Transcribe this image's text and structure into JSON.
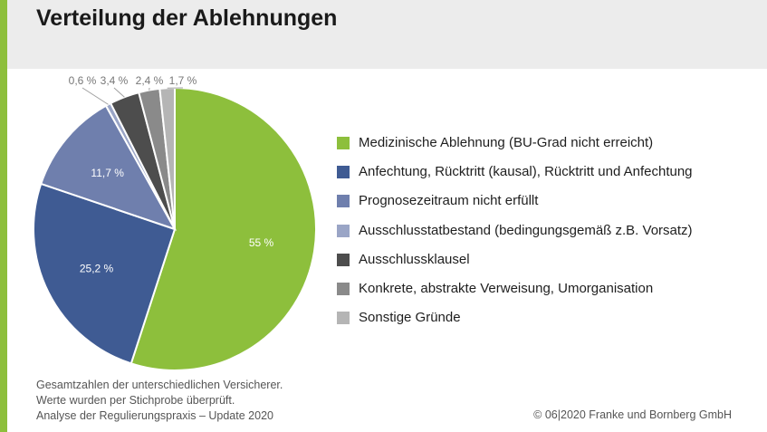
{
  "title": "Verteilung der Ablehnungen",
  "chart_data": {
    "type": "pie",
    "title": "Verteilung der Ablehnungen",
    "start_angle": "12 o'clock",
    "direction": "clockwise",
    "slices": [
      {
        "label": "Medizinische Ablehnung (BU-Grad nicht erreicht)",
        "value": 55.0,
        "value_label": "55 %",
        "color": "#8dbf3c"
      },
      {
        "label": "Anfechtung, Rücktritt (kausal), Rücktritt und Anfechtung",
        "value": 25.2,
        "value_label": "25,2 %",
        "color": "#3f5b93"
      },
      {
        "label": "Prognosezeitraum nicht erfüllt",
        "value": 11.7,
        "value_label": "11,7 %",
        "color": "#6f7fad"
      },
      {
        "label": "Ausschlusstatbestand (bedingungsgemäß z.B. Vorsatz)",
        "value": 0.6,
        "value_label": "0,6 %",
        "color": "#9aa5c6"
      },
      {
        "label": "Ausschlussklausel",
        "value": 3.4,
        "value_label": "3,4 %",
        "color": "#4d4d4d"
      },
      {
        "label": "Konkrete, abstrakte Verweisung, Umorganisation",
        "value": 2.4,
        "value_label": "2,4 %",
        "color": "#8a8a8a"
      },
      {
        "label": "Sonstige Gründe",
        "value": 1.7,
        "value_label": "1,7 %",
        "color": "#b5b5b5"
      }
    ],
    "legend_position": "right"
  },
  "footnote": {
    "line1": "Gesamtzahlen der unterschiedlichen Versicherer.",
    "line2": "Werte wurden per Stichprobe überprüft.",
    "line3": "Analyse der Regulierungspraxis – Update 2020"
  },
  "copyright": "© 06|2020 Franke und Bornberg GmbH"
}
